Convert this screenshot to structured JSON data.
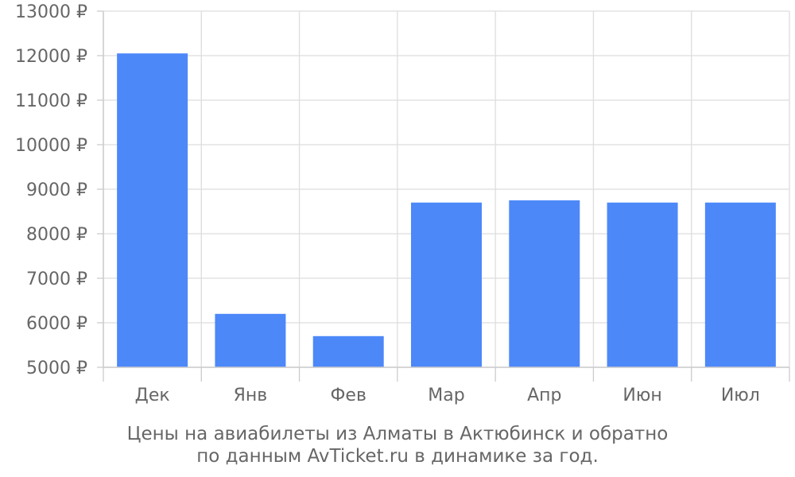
{
  "chart_data": {
    "type": "bar",
    "categories": [
      "Дек",
      "Янв",
      "Фев",
      "Мар",
      "Апр",
      "Июн",
      "Июл"
    ],
    "values": [
      12050,
      6200,
      5700,
      8700,
      8750,
      8700,
      8700
    ],
    "ylim": [
      5000,
      13000
    ],
    "yticks": [
      "5000 ₽",
      "6000 ₽",
      "7000 ₽",
      "8000 ₽",
      "9000 ₽",
      "10000 ₽",
      "11000 ₽",
      "12000 ₽",
      "13000 ₽"
    ],
    "grid": true,
    "bar_color": "#4d88f9",
    "caption_line1": "Цены на авиабилеты из Алматы в Актюбинск и обратно",
    "caption_line2": "по данным AvTicket.ru в динамике за год."
  }
}
